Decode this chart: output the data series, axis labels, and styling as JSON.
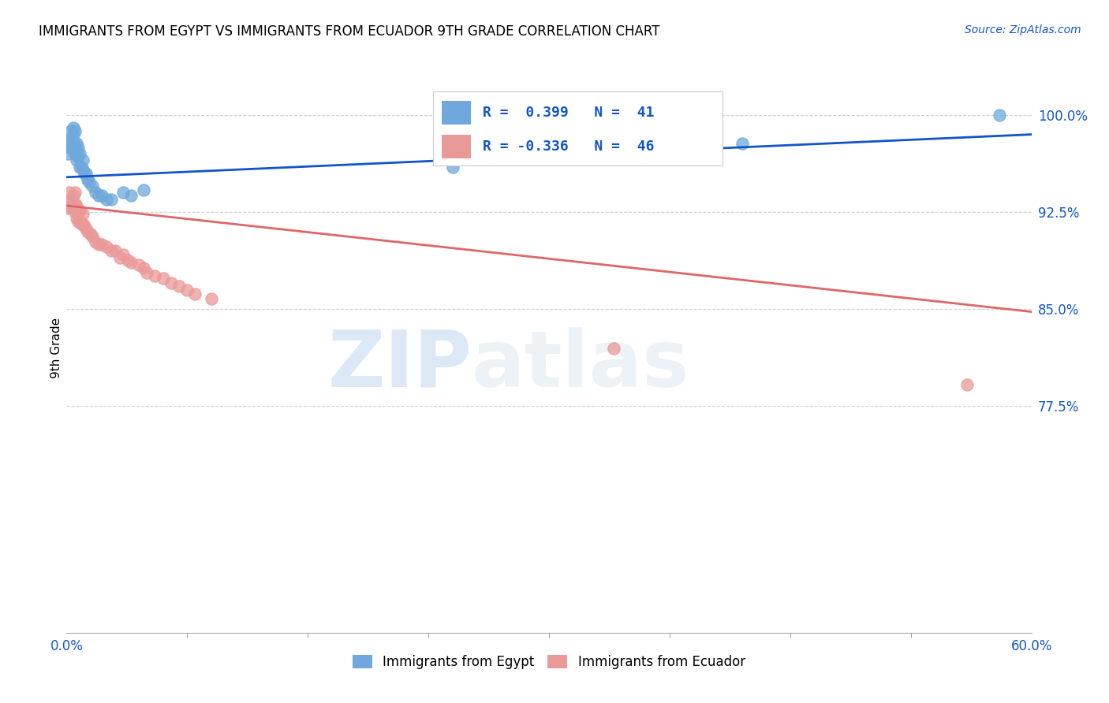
{
  "title": "IMMIGRANTS FROM EGYPT VS IMMIGRANTS FROM ECUADOR 9TH GRADE CORRELATION CHART",
  "source": "Source: ZipAtlas.com",
  "ylabel": "9th Grade",
  "ytick_labels": [
    "100.0%",
    "92.5%",
    "85.0%",
    "77.5%"
  ],
  "ytick_values": [
    1.0,
    0.925,
    0.85,
    0.775
  ],
  "xmin": 0.0,
  "xmax": 0.6,
  "ymin": 0.6,
  "ymax": 1.04,
  "legend_egypt_r": "R =  0.399",
  "legend_egypt_n": "N =  41",
  "legend_ecuador_r": "R = -0.336",
  "legend_ecuador_n": "N =  46",
  "egypt_color": "#6fa8dc",
  "ecuador_color": "#ea9999",
  "egypt_line_color": "#1155cc",
  "ecuador_line_color": "#e06666",
  "watermark_zip": "ZIP",
  "watermark_atlas": "atlas",
  "background_color": "#ffffff",
  "egypt_scatter_x": [
    0.001,
    0.002,
    0.002,
    0.003,
    0.003,
    0.003,
    0.004,
    0.004,
    0.004,
    0.004,
    0.005,
    0.005,
    0.005,
    0.006,
    0.006,
    0.006,
    0.007,
    0.007,
    0.008,
    0.008,
    0.009,
    0.01,
    0.01,
    0.011,
    0.012,
    0.013,
    0.014,
    0.016,
    0.018,
    0.02,
    0.022,
    0.025,
    0.028,
    0.035,
    0.04,
    0.048,
    0.24,
    0.26,
    0.38,
    0.42,
    0.58
  ],
  "egypt_scatter_y": [
    0.97,
    0.975,
    0.98,
    0.975,
    0.982,
    0.988,
    0.975,
    0.98,
    0.985,
    0.99,
    0.97,
    0.975,
    0.988,
    0.965,
    0.972,
    0.978,
    0.968,
    0.975,
    0.96,
    0.97,
    0.96,
    0.958,
    0.965,
    0.955,
    0.955,
    0.95,
    0.948,
    0.945,
    0.94,
    0.938,
    0.938,
    0.935,
    0.935,
    0.94,
    0.938,
    0.942,
    0.96,
    0.968,
    0.97,
    0.978,
    1.0
  ],
  "ecuador_scatter_x": [
    0.001,
    0.002,
    0.002,
    0.003,
    0.003,
    0.004,
    0.004,
    0.005,
    0.005,
    0.005,
    0.006,
    0.006,
    0.007,
    0.007,
    0.008,
    0.008,
    0.009,
    0.01,
    0.01,
    0.011,
    0.012,
    0.013,
    0.015,
    0.016,
    0.018,
    0.02,
    0.022,
    0.025,
    0.028,
    0.03,
    0.033,
    0.035,
    0.038,
    0.04,
    0.045,
    0.048,
    0.05,
    0.055,
    0.06,
    0.065,
    0.07,
    0.075,
    0.08,
    0.09,
    0.34,
    0.56
  ],
  "ecuador_scatter_y": [
    0.928,
    0.932,
    0.94,
    0.928,
    0.935,
    0.93,
    0.938,
    0.925,
    0.932,
    0.94,
    0.92,
    0.93,
    0.918,
    0.926,
    0.918,
    0.926,
    0.916,
    0.916,
    0.924,
    0.914,
    0.912,
    0.91,
    0.908,
    0.906,
    0.902,
    0.9,
    0.9,
    0.898,
    0.895,
    0.895,
    0.89,
    0.892,
    0.888,
    0.886,
    0.884,
    0.882,
    0.878,
    0.876,
    0.874,
    0.87,
    0.868,
    0.865,
    0.862,
    0.858,
    0.82,
    0.792
  ],
  "egypt_trendline_x": [
    0.0,
    0.6
  ],
  "egypt_trendline_y": [
    0.952,
    0.985
  ],
  "ecuador_trendline_x": [
    0.0,
    0.6
  ],
  "ecuador_trendline_y": [
    0.93,
    0.848
  ]
}
